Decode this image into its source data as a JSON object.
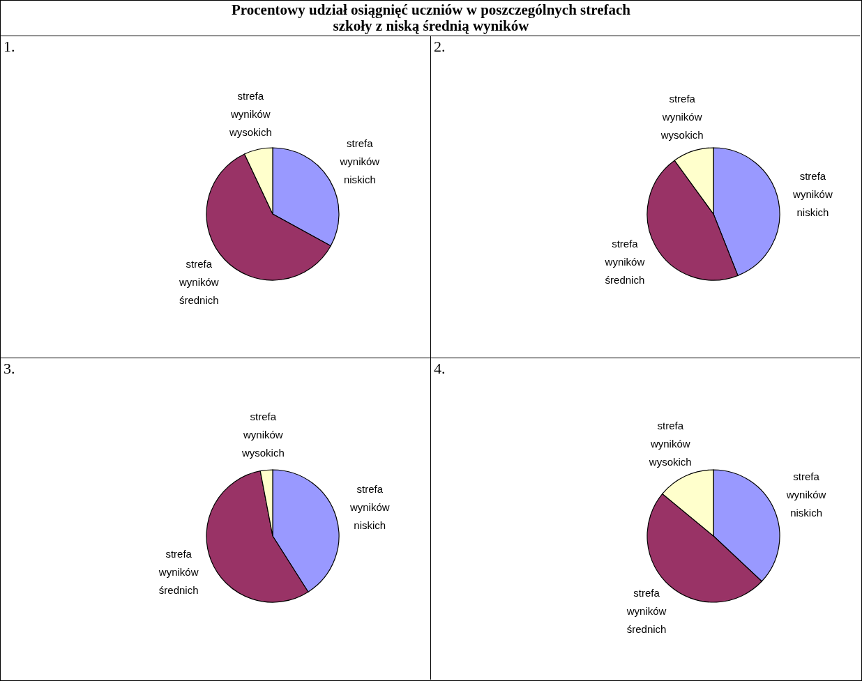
{
  "chart_data": [
    {
      "type": "pie",
      "title": "1.",
      "annotations": [
        "Procentowy udział osiągnięć uczniów w poszczególnych strefach\nszkoły z niską średnią wyników"
      ],
      "categories": [
        "strefa wyników niskich",
        "strefa wyników średnich",
        "strefa wyników wysokich"
      ],
      "values": [
        33,
        60,
        7
      ],
      "colors": [
        "#9999ff",
        "#993366",
        "#ffffcc"
      ]
    },
    {
      "type": "pie",
      "title": "2.",
      "categories": [
        "strefa wyników niskich",
        "strefa wyników średnich",
        "strefa wyników wysokich"
      ],
      "values": [
        44,
        46,
        10
      ],
      "colors": [
        "#9999ff",
        "#993366",
        "#ffffcc"
      ]
    },
    {
      "type": "pie",
      "title": "3.",
      "categories": [
        "strefa wyników niskich",
        "strefa wyników średnich",
        "strefa wyników wysokich"
      ],
      "values": [
        41,
        56,
        3
      ],
      "colors": [
        "#9999ff",
        "#993366",
        "#ffffcc"
      ]
    },
    {
      "type": "pie",
      "title": "4.",
      "categories": [
        "strefa wyników niskich",
        "strefa wyników średnich",
        "strefa wyników wysokich"
      ],
      "values": [
        37,
        49,
        14
      ],
      "colors": [
        "#9999ff",
        "#993366",
        "#ffffcc"
      ]
    }
  ]
}
